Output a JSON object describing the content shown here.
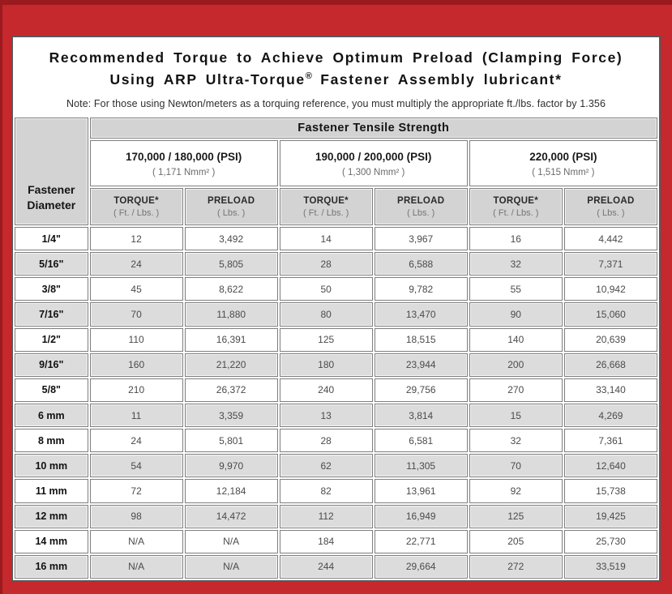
{
  "header": {
    "title_line1": "Recommended Torque to Achieve Optimum Preload (Clamping Force)",
    "title_line2_pre": "Using ARP Ultra-Torque",
    "title_line2_reg": "®",
    "title_line2_post": " Fastener Assembly lubricant*",
    "note": "Note: For those using Newton/meters as a torquing reference, you must multiply the appropriate ft./lbs. factor by 1.356"
  },
  "table": {
    "corner_line1": "Fastener",
    "corner_line2": "Diameter",
    "tensile_header": "Fastener Tensile Strength",
    "groups": [
      {
        "psi": "170,000 / 180,000 (PSI)",
        "nmm": "( 1,171 Nmm² )"
      },
      {
        "psi": "190,000 / 200,000 (PSI)",
        "nmm": "( 1,300 Nmm² )"
      },
      {
        "psi": "220,000 (PSI)",
        "nmm": "( 1,515 Nmm² )"
      }
    ],
    "col_headers": {
      "torque": "TORQUE*",
      "torque_sub": "( Ft. / Lbs. )",
      "preload": "PRELOAD",
      "preload_sub": "( Lbs. )"
    },
    "rows": [
      {
        "dia": "1/4\"",
        "vals": [
          "12",
          "3,492",
          "14",
          "3,967",
          "16",
          "4,442"
        ]
      },
      {
        "dia": "5/16\"",
        "vals": [
          "24",
          "5,805",
          "28",
          "6,588",
          "32",
          "7,371"
        ]
      },
      {
        "dia": "3/8\"",
        "vals": [
          "45",
          "8,622",
          "50",
          "9,782",
          "55",
          "10,942"
        ]
      },
      {
        "dia": "7/16\"",
        "vals": [
          "70",
          "11,880",
          "80",
          "13,470",
          "90",
          "15,060"
        ]
      },
      {
        "dia": "1/2\"",
        "vals": [
          "110",
          "16,391",
          "125",
          "18,515",
          "140",
          "20,639"
        ]
      },
      {
        "dia": "9/16\"",
        "vals": [
          "160",
          "21,220",
          "180",
          "23,944",
          "200",
          "26,668"
        ]
      },
      {
        "dia": "5/8\"",
        "vals": [
          "210",
          "26,372",
          "240",
          "29,756",
          "270",
          "33,140"
        ]
      },
      {
        "dia": "6 mm",
        "vals": [
          "11",
          "3,359",
          "13",
          "3,814",
          "15",
          "4,269"
        ]
      },
      {
        "dia": "8 mm",
        "vals": [
          "24",
          "5,801",
          "28",
          "6,581",
          "32",
          "7,361"
        ]
      },
      {
        "dia": "10 mm",
        "vals": [
          "54",
          "9,970",
          "62",
          "11,305",
          "70",
          "12,640"
        ]
      },
      {
        "dia": "11 mm",
        "vals": [
          "72",
          "12,184",
          "82",
          "13,961",
          "92",
          "15,738"
        ]
      },
      {
        "dia": "12 mm",
        "vals": [
          "98",
          "14,472",
          "112",
          "16,949",
          "125",
          "19,425"
        ]
      },
      {
        "dia": "14 mm",
        "vals": [
          "N/A",
          "N/A",
          "184",
          "22,771",
          "205",
          "25,730"
        ]
      },
      {
        "dia": "16 mm",
        "vals": [
          "N/A",
          "N/A",
          "244",
          "29,664",
          "272",
          "33,519"
        ]
      }
    ]
  },
  "colors": {
    "frame_red": "#c5282d",
    "frame_dark_red": "#9a1a1e",
    "content_border": "#58585a",
    "header_gray": "#d3d3d3",
    "alt_row_gray": "#dcdcdc",
    "cell_border": "#7e7e7e"
  }
}
